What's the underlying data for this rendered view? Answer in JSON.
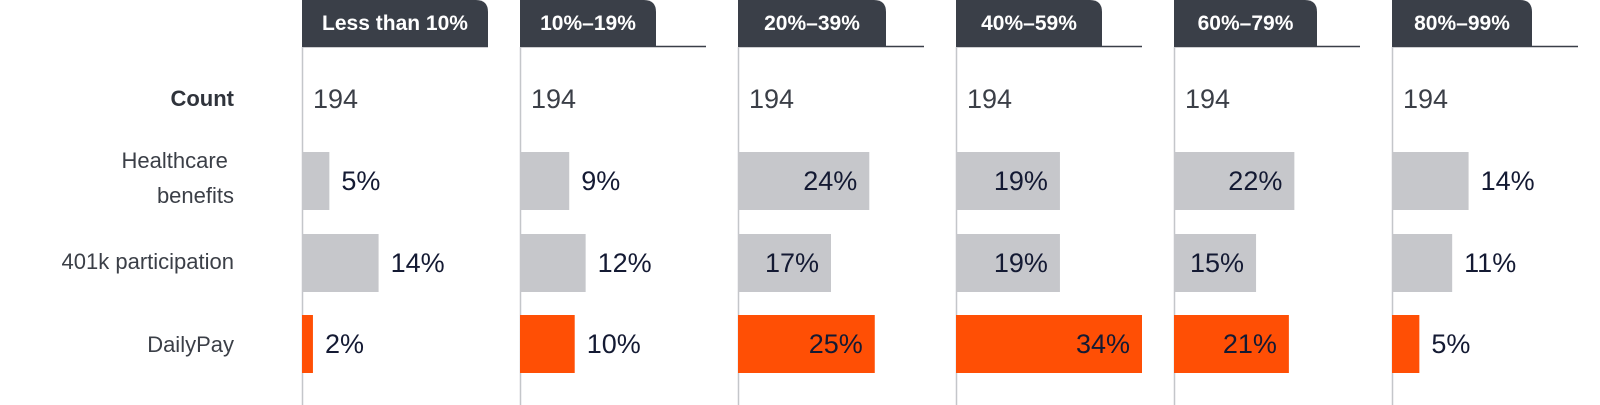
{
  "chart_data": {
    "type": "bar",
    "layout": "small-multiples-horizontal",
    "categories": [
      "Less than 10%",
      "10%–19%",
      "20%–39%",
      "40%–59%",
      "60%–79%",
      "80%–99%"
    ],
    "count_label": "Count",
    "counts": [
      194,
      194,
      194,
      194,
      194,
      194
    ],
    "series": [
      {
        "name": "Healthcare benefits",
        "values": [
          5,
          9,
          24,
          19,
          22,
          14
        ],
        "color": "#c6c7cb"
      },
      {
        "name": "401k participation",
        "values": [
          14,
          12,
          17,
          19,
          15,
          11
        ],
        "color": "#c6c7cb"
      },
      {
        "name": "DailyPay",
        "values": [
          2,
          10,
          25,
          34,
          21,
          5
        ],
        "color": "#ff4f05"
      }
    ],
    "value_suffix": "%",
    "xlim": [
      0,
      34
    ],
    "colors": {
      "tab": "#3a3f48",
      "axis": "#c4c6ca",
      "highlight": "#ff4f05",
      "neutral": "#c6c7cb"
    }
  }
}
